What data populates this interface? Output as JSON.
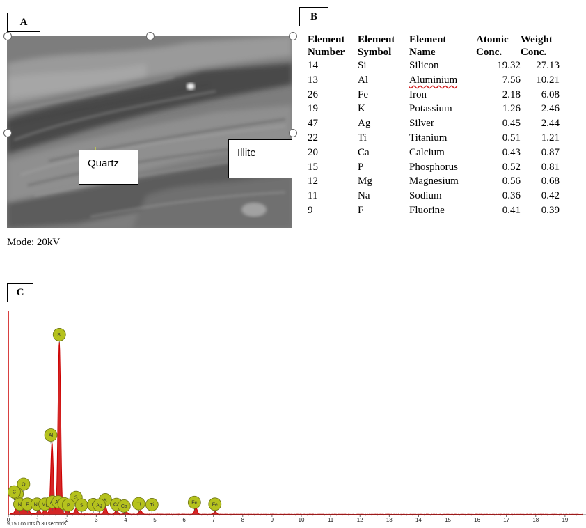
{
  "panels": {
    "a": "A",
    "b": "B",
    "c": "C"
  },
  "sem": {
    "callouts": {
      "quartz": "Quartz",
      "illite": "Illite"
    },
    "mode": "Mode: 20kV"
  },
  "table": {
    "headers": [
      [
        "Element",
        "Number"
      ],
      [
        "Element",
        "Symbol"
      ],
      [
        "Element",
        "Name"
      ],
      [
        "Atomic",
        "Conc."
      ],
      [
        "Weight",
        "Conc."
      ]
    ],
    "rows": [
      [
        "14",
        "Si",
        "Silicon",
        "19.32",
        "27.13"
      ],
      [
        "13",
        "Al",
        "Aluminium",
        "7.56",
        "10.21"
      ],
      [
        "26",
        "Fe",
        "Iron",
        "2.18",
        "6.08"
      ],
      [
        "19",
        "K",
        "Potassium",
        "1.26",
        "2.46"
      ],
      [
        "47",
        "Ag",
        "Silver",
        "0.45",
        "2.44"
      ],
      [
        "22",
        "Ti",
        "Titanium",
        "0.51",
        "1.21"
      ],
      [
        "20",
        "Ca",
        "Calcium",
        "0.43",
        "0.87"
      ],
      [
        "15",
        "P",
        "Phosphorus",
        "0.52",
        "0.81"
      ],
      [
        "12",
        "Mg",
        "Magnesium",
        "0.56",
        "0.68"
      ],
      [
        "11",
        "Na",
        "Sodium",
        "0.36",
        "0.42"
      ],
      [
        "9",
        "F",
        "Fluorine",
        "0.41",
        "0.39"
      ]
    ]
  },
  "chart_data": {
    "type": "line",
    "xlim": [
      0,
      20
    ],
    "ylim": [
      0,
      9150
    ],
    "x_ticks": [
      "0",
      "1",
      "2",
      "3",
      "4",
      "5",
      "6",
      "7",
      "8",
      "9",
      "10",
      "11",
      "12",
      "13",
      "14",
      "15",
      "16",
      "17",
      "18",
      "19"
    ],
    "peaks": [
      {
        "x": 0.27,
        "y": 220
      },
      {
        "x": 0.39,
        "y": 170
      },
      {
        "x": 0.52,
        "y": 300
      },
      {
        "x": 0.68,
        "y": 180
      },
      {
        "x": 1.04,
        "y": 160
      },
      {
        "x": 1.25,
        "y": 220
      },
      {
        "x": 1.49,
        "y": 3200
      },
      {
        "x": 1.74,
        "y": 7700
      },
      {
        "x": 2.01,
        "y": 260
      },
      {
        "x": 2.31,
        "y": 240
      },
      {
        "x": 3.31,
        "y": 330
      },
      {
        "x": 3.69,
        "y": 180
      },
      {
        "x": 4.01,
        "y": 130
      },
      {
        "x": 4.51,
        "y": 170
      },
      {
        "x": 6.4,
        "y": 300
      },
      {
        "x": 7.06,
        "y": 120
      }
    ],
    "labels": [
      {
        "text": "Si",
        "x": 1.74,
        "y": 7700
      },
      {
        "text": "Al",
        "x": 1.45,
        "y": 3200
      },
      {
        "text": "O",
        "x": 0.52,
        "y": 1000
      },
      {
        "text": "S",
        "x": 2.31,
        "y": 400
      },
      {
        "text": "K",
        "x": 3.31,
        "y": 300
      },
      {
        "text": "Ca",
        "x": 0.3,
        "y": 550
      },
      {
        "text": "C",
        "x": 0.2,
        "y": 650
      },
      {
        "text": "N",
        "x": 0.39,
        "y": 100
      },
      {
        "text": "F",
        "x": 0.65,
        "y": 100
      },
      {
        "text": "Na",
        "x": 0.98,
        "y": 100
      },
      {
        "text": "Mg",
        "x": 1.25,
        "y": 100
      },
      {
        "text": "Al",
        "x": 1.5,
        "y": 200
      },
      {
        "text": "Ag",
        "x": 1.7,
        "y": 200
      },
      {
        "text": "P",
        "x": 1.9,
        "y": 120
      },
      {
        "text": "P",
        "x": 2.05,
        "y": 60
      },
      {
        "text": "S",
        "x": 2.5,
        "y": 60
      },
      {
        "text": "K",
        "x": 2.9,
        "y": 80
      },
      {
        "text": "Ag",
        "x": 3.1,
        "y": 60
      },
      {
        "text": "Ca",
        "x": 3.69,
        "y": 90
      },
      {
        "text": "Ca",
        "x": 3.95,
        "y": 20
      },
      {
        "text": "Ti",
        "x": 4.45,
        "y": 120
      },
      {
        "text": "Ti",
        "x": 4.9,
        "y": 80
      },
      {
        "text": "Fe",
        "x": 6.35,
        "y": 180
      },
      {
        "text": "Fe",
        "x": 7.05,
        "y": 100
      }
    ],
    "footer": "9,150 counts in 30 seconds",
    "color": "#cc0000",
    "label_fill": "#b5c21d"
  }
}
